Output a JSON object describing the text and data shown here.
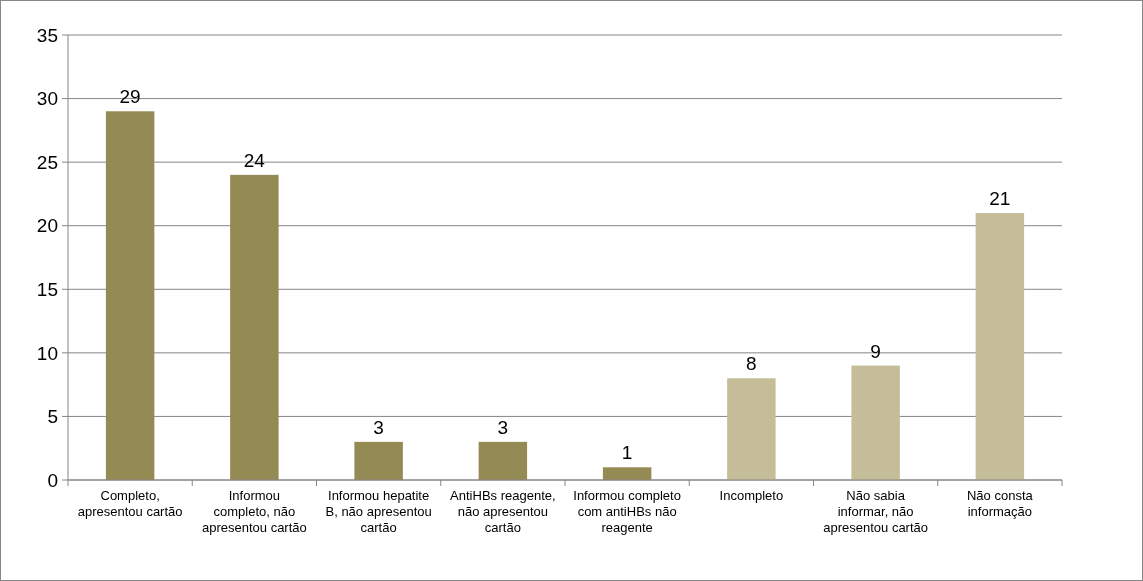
{
  "chart_data": {
    "type": "bar",
    "categories": [
      "Completo, apresentou cartão",
      "Informou completo, não apresentou cartão",
      "Informou hepatite B, não apresentou cartão",
      "AntiHBs reagente, não apresentou cartão",
      "Informou completo com antiHBs não reagente",
      "Incompleto",
      "Não sabia informar, não apresentou cartão",
      "Não consta informação"
    ],
    "values": [
      29,
      24,
      3,
      3,
      1,
      8,
      9,
      21
    ],
    "colors": [
      "#948a54",
      "#948a54",
      "#948a54",
      "#948a54",
      "#948a54",
      "#c4bd97",
      "#c4bd97",
      "#c4bd97"
    ],
    "ylim": [
      0,
      35
    ],
    "yticks": [
      0,
      5,
      10,
      15,
      20,
      25,
      30,
      35
    ],
    "grid": "y",
    "data_labels": true
  }
}
